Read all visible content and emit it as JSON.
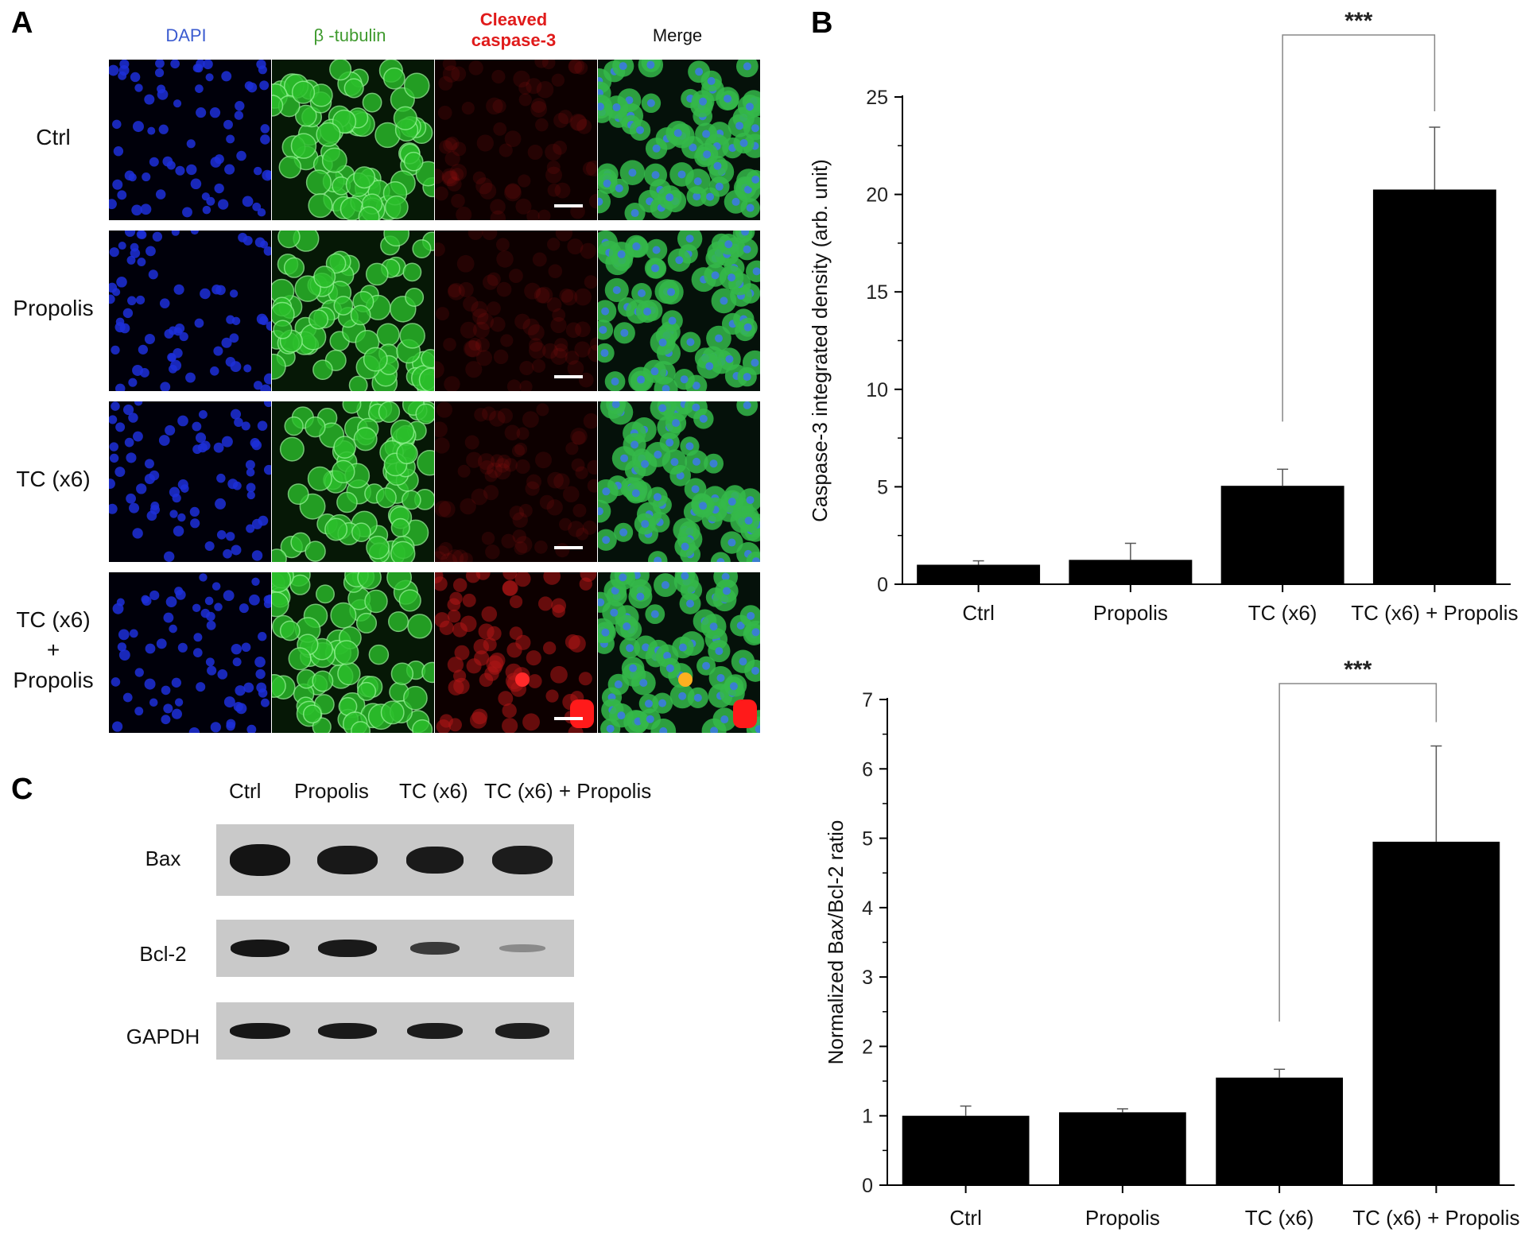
{
  "panel_a": {
    "letter": "A",
    "columns": [
      {
        "label": "DAPI",
        "color": "#3b5bd0"
      },
      {
        "label": "β -tubulin",
        "color": "#3f9a2e"
      },
      {
        "label": "Cleaved\ncaspase-3",
        "color": "#e01b1b"
      },
      {
        "label": "Merge",
        "color": "#111111"
      }
    ],
    "rows": [
      "Ctrl",
      "Propolis",
      "TC (x6)",
      "TC (x6)\n+\nPropolis"
    ]
  },
  "panel_c": {
    "letter": "C",
    "columns": [
      "Ctrl",
      "Propolis",
      "TC (x6)",
      "TC (x6) + Propolis"
    ],
    "rows": [
      "Bax",
      "Bcl-2",
      "GAPDH"
    ]
  },
  "panel_b": {
    "letter": "B"
  },
  "chart_data": [
    {
      "type": "bar",
      "categories": [
        "Ctrl",
        "Propolis",
        "TC (x6)",
        "TC (x6) + Propolis"
      ],
      "values": [
        1.0,
        1.25,
        5.05,
        20.25
      ],
      "errors": [
        0.2,
        0.85,
        0.85,
        3.2
      ],
      "ylabel": "Caspase-3 integrated density (arb. unit)",
      "xlabel": "",
      "ylim": [
        0,
        25
      ],
      "yticks": [
        0,
        5,
        10,
        15,
        20,
        25
      ],
      "bar_color": "#000000",
      "significance": {
        "from": 2,
        "to": 3,
        "label": "***"
      }
    },
    {
      "type": "bar",
      "categories": [
        "Ctrl",
        "Propolis",
        "TC (x6)",
        "TC (x6) + Propolis"
      ],
      "values": [
        1.0,
        1.05,
        1.55,
        4.95
      ],
      "errors": [
        0.14,
        0.05,
        0.12,
        1.38
      ],
      "ylabel": "Normalized Bax/Bcl-2 ratio",
      "xlabel": "",
      "ylim": [
        0,
        7
      ],
      "yticks": [
        0,
        1,
        2,
        3,
        4,
        5,
        6,
        7
      ],
      "bar_color": "#000000",
      "significance": {
        "from": 2,
        "to": 3,
        "label": "***"
      }
    }
  ]
}
